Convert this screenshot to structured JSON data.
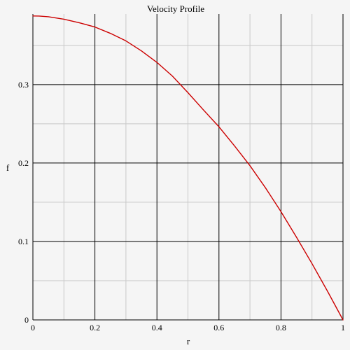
{
  "chart_data": {
    "type": "line",
    "title": "Velocity Profile",
    "xlabel": "r",
    "ylabel": "f",
    "xlim": [
      0,
      1
    ],
    "ylim": [
      0,
      0.39
    ],
    "grid": true,
    "xticks": [
      0,
      0.2,
      0.4,
      0.6,
      0.8,
      1
    ],
    "xtick_labels": [
      "0",
      "0.2",
      "0.4",
      "0.6",
      "0.8",
      "1"
    ],
    "yticks": [
      0,
      0.1,
      0.2,
      0.3
    ],
    "ytick_labels": [
      "0",
      "0.1",
      "0.2",
      "0.3"
    ],
    "x_minor_ticks": [
      0.1,
      0.3,
      0.5,
      0.7,
      0.9
    ],
    "y_minor_ticks": [
      0.05,
      0.15,
      0.25,
      0.35
    ],
    "series": [
      {
        "color": "#cc0000",
        "x": [
          0,
          0.02,
          0.05,
          0.1,
          0.15,
          0.2,
          0.25,
          0.3,
          0.35,
          0.4,
          0.45,
          0.5,
          0.55,
          0.6,
          0.65,
          0.7,
          0.75,
          0.8,
          0.85,
          0.9,
          0.95,
          1
        ],
        "y": [
          0.3875,
          0.3874,
          0.3865,
          0.3834,
          0.3788,
          0.3734,
          0.3653,
          0.3557,
          0.343,
          0.3283,
          0.3108,
          0.2897,
          0.2677,
          0.2462,
          0.2219,
          0.1966,
          0.1684,
          0.138,
          0.1054,
          0.0718,
          0.0366,
          0
        ]
      }
    ]
  },
  "colors": {
    "background": "#f5f5f5",
    "major_grid": "#000000",
    "minor_grid": "#c8c8c8",
    "axis": "#000000"
  }
}
